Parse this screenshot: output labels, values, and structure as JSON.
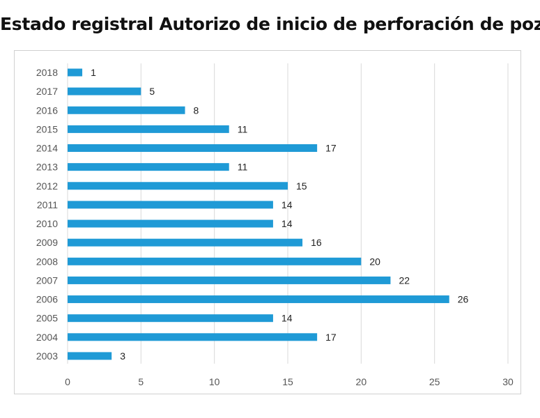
{
  "chart_data": {
    "type": "bar",
    "orientation": "horizontal",
    "title": "Estado registral Autorizo de inicio de perforación de pozos",
    "categories": [
      "2018",
      "2017",
      "2016",
      "2015",
      "2014",
      "2013",
      "2012",
      "2011",
      "2010",
      "2009",
      "2008",
      "2007",
      "2006",
      "2005",
      "2004",
      "2003"
    ],
    "values": [
      1,
      5,
      8,
      11,
      17,
      11,
      15,
      14,
      14,
      16,
      20,
      22,
      26,
      14,
      17,
      3
    ],
    "xlim": [
      0,
      30
    ],
    "xticks": [
      0,
      5,
      10,
      15,
      20,
      25,
      30
    ],
    "grid": true,
    "bar_color": "#1f9ad6",
    "data_labels": true
  }
}
